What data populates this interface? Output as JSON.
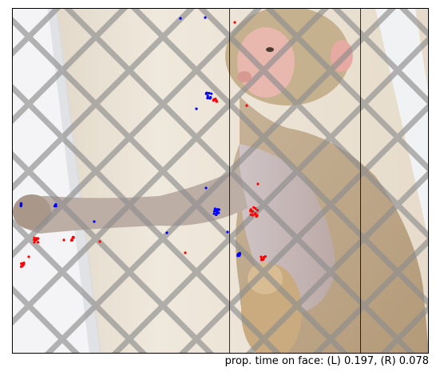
{
  "caption": "prop. time on face: (L) 0.197, (R) 0.078",
  "colors": {
    "left_gaze": "#ff0000",
    "right_gaze": "#0000ff",
    "frame": "#000000"
  },
  "image": {
    "subject": "macaque monkey behind chain-link fence",
    "icon": "photo-icon"
  }
}
